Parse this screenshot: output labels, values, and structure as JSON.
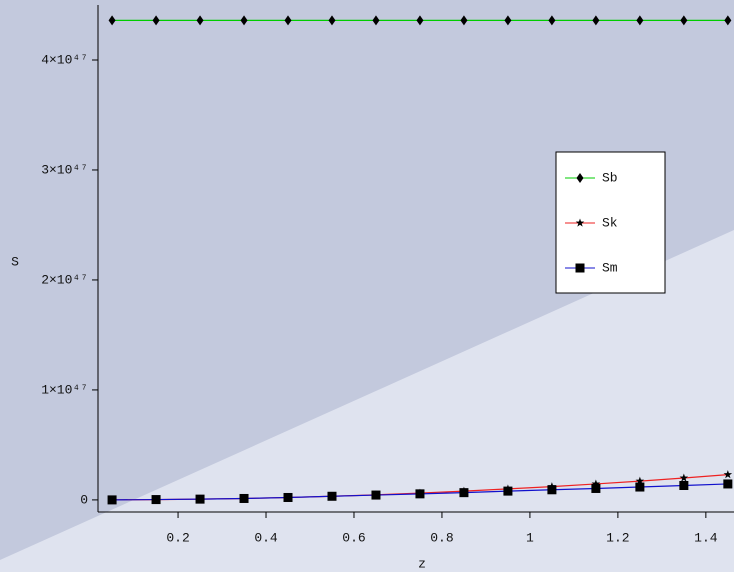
{
  "chart_data": {
    "type": "line",
    "x_label": "z",
    "y_label": "S",
    "x": [
      0.05,
      0.15,
      0.25,
      0.35,
      0.45,
      0.55,
      0.65,
      0.75,
      0.85,
      0.95,
      1.05,
      1.15,
      1.25,
      1.35,
      1.45
    ],
    "series": [
      {
        "name": "Sb",
        "color": "#00cc00",
        "marker": "diamond",
        "values": [
          4.36e+47,
          4.36e+47,
          4.36e+47,
          4.36e+47,
          4.36e+47,
          4.36e+47,
          4.36e+47,
          4.36e+47,
          4.36e+47,
          4.36e+47,
          4.36e+47,
          4.36e+47,
          4.36e+47,
          4.36e+47,
          4.36e+47
        ]
      },
      {
        "name": "Sk",
        "color": "#ee2222",
        "marker": "star",
        "values": [
          3e+43,
          2.5e+44,
          7e+44,
          1.3e+45,
          2.2e+45,
          3.3e+45,
          4.6e+45,
          6.2e+45,
          8e+45,
          1e+46,
          1.21e+46,
          1.45e+46,
          1.71e+46,
          1.99e+46,
          2.3e+46
        ]
      },
      {
        "name": "Sm",
        "color": "#1111cc",
        "marker": "square",
        "values": [
          0,
          3e+44,
          7e+44,
          1.3e+45,
          2.2e+45,
          3.3e+45,
          4.4e+45,
          5.5e+45,
          6.6e+45,
          8e+45,
          9.2e+45,
          1.04e+46,
          1.17e+46,
          1.31e+46,
          1.45e+46
        ]
      }
    ],
    "xlim": [
      0.018,
      1.464
    ],
    "ylim": [
      -1.1e+46,
      4.5e+47
    ],
    "xticks": [
      0.2,
      0.4,
      0.6,
      0.8,
      1,
      1.2,
      1.4
    ],
    "yticks": [
      0,
      {
        "value": 1e+47,
        "label": "1×10⁴⁷"
      },
      {
        "value": 2e+47,
        "label": "2×10⁴⁷"
      },
      {
        "value": 3e+47,
        "label": "3×10⁴⁷"
      },
      {
        "value": 4e+47,
        "label": "4×10⁴⁷"
      }
    ]
  }
}
